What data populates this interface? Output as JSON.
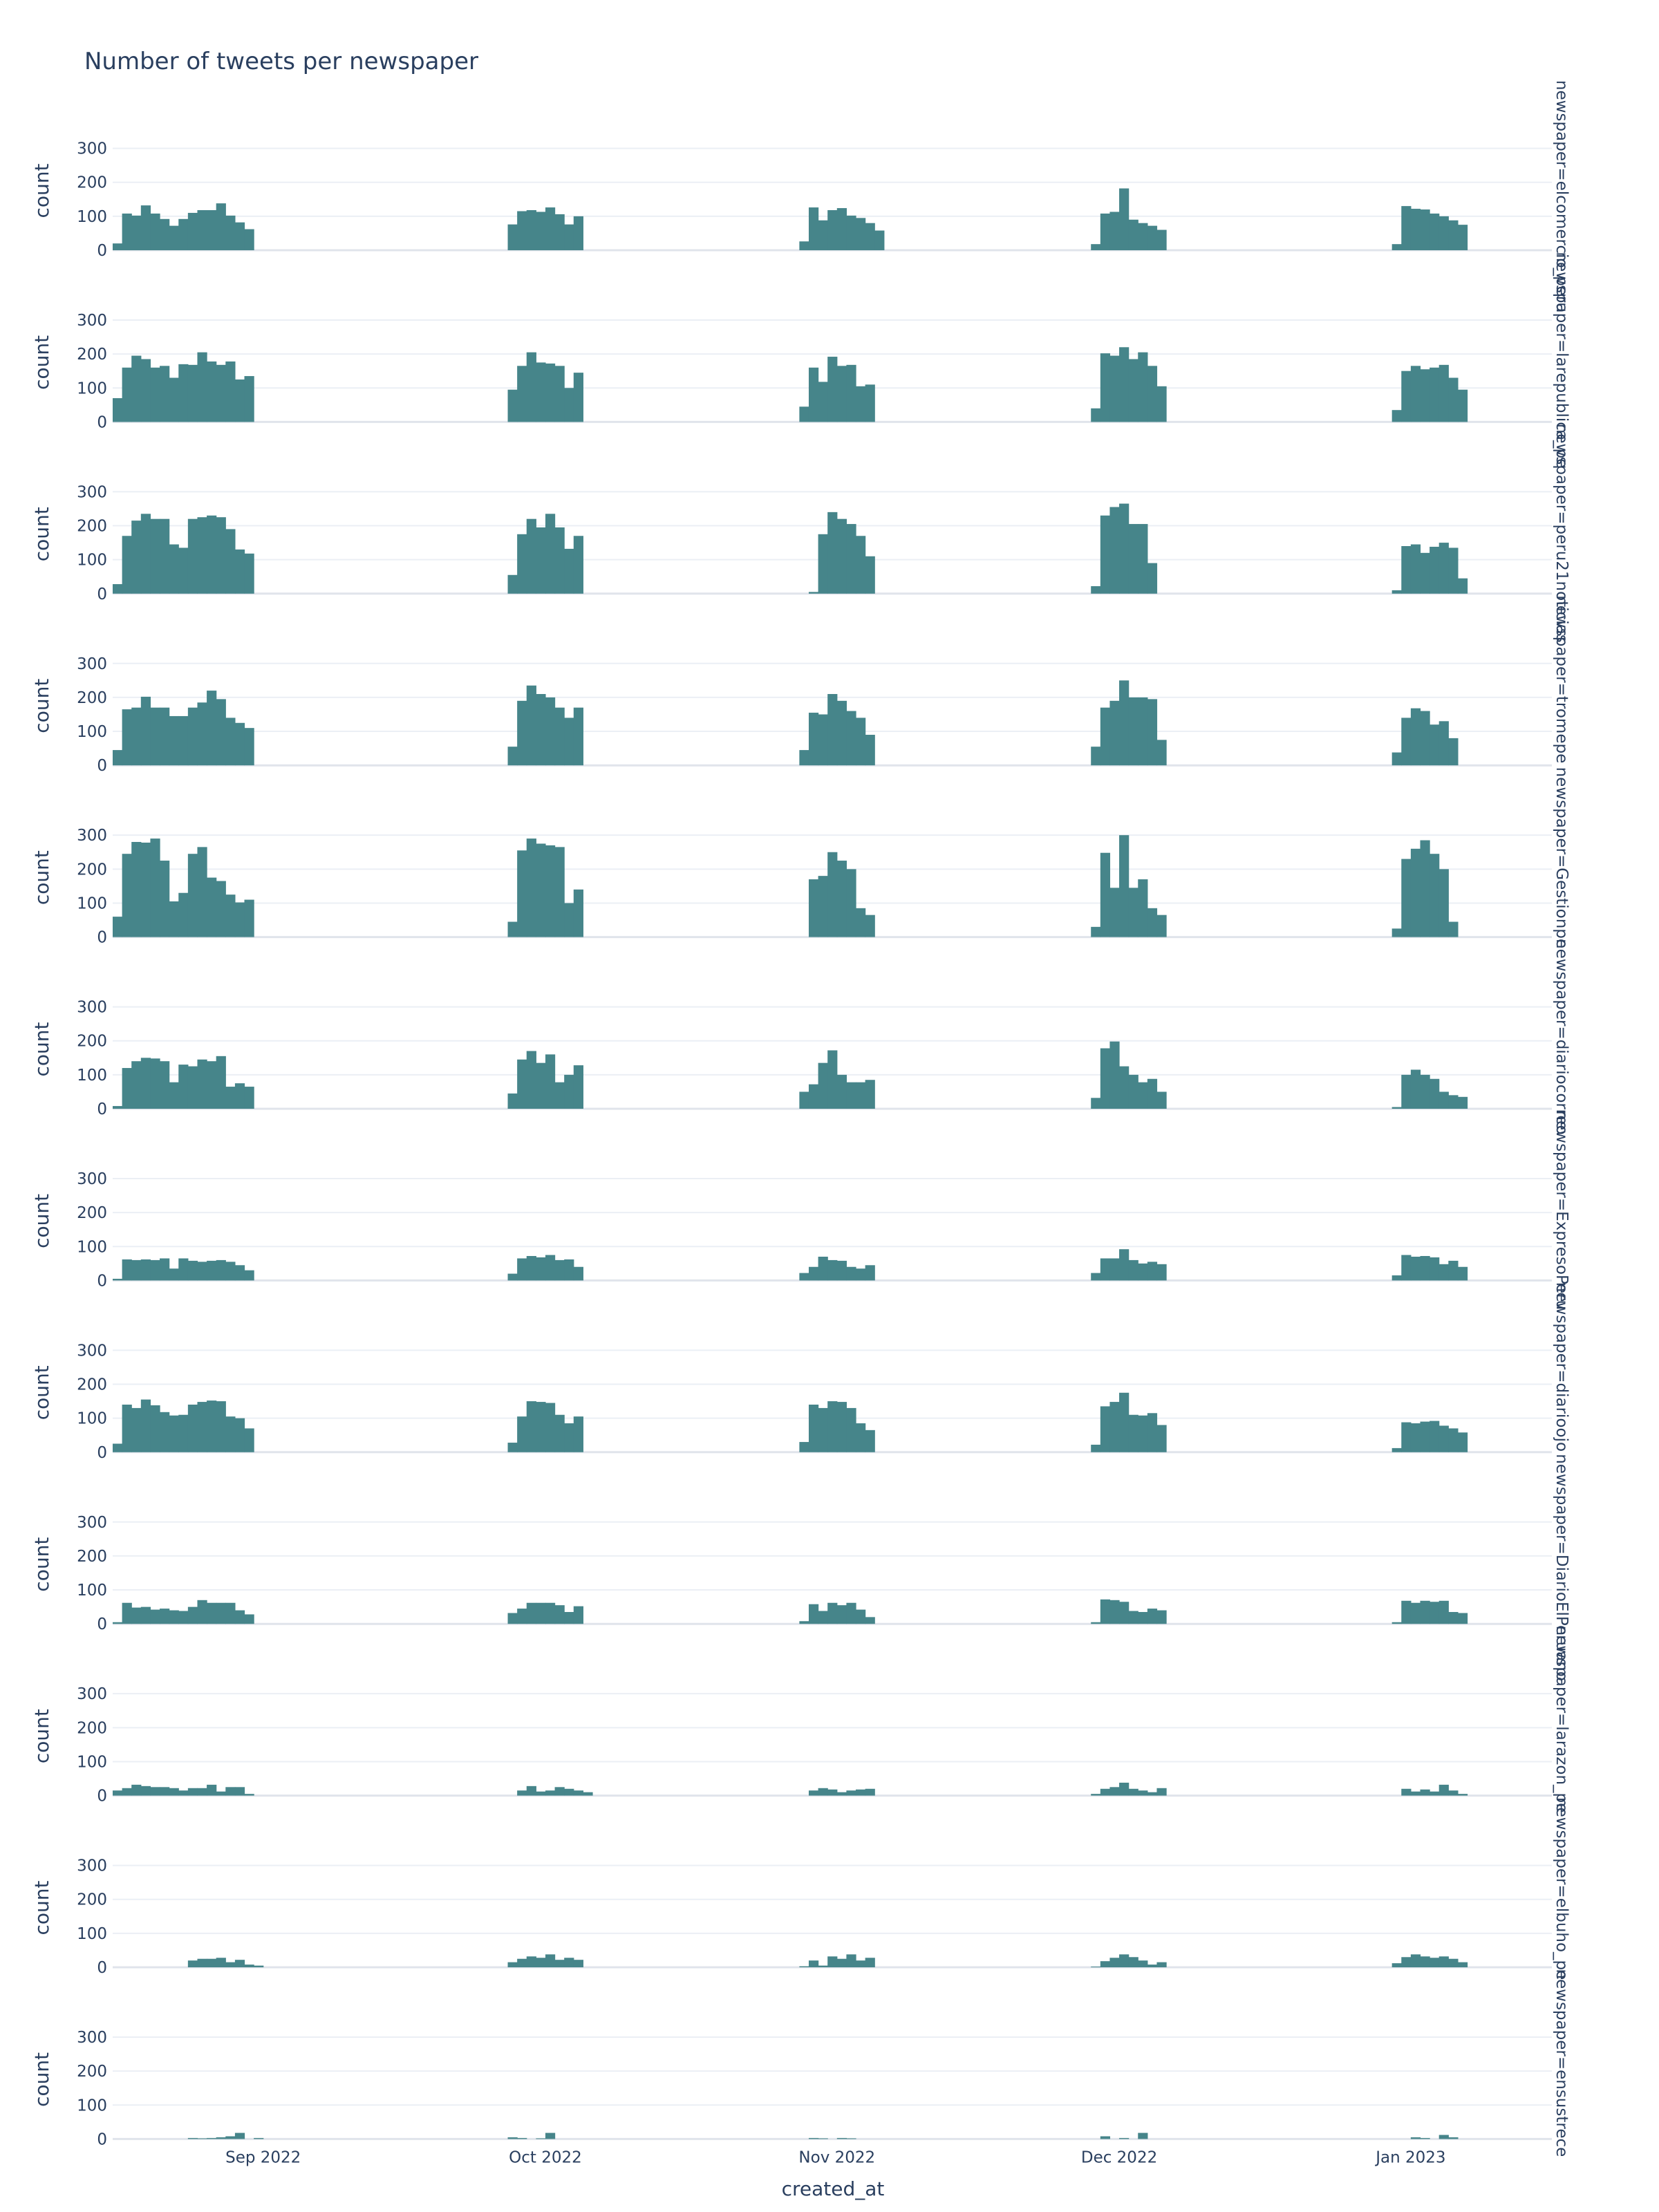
{
  "chart_data": {
    "type": "bar",
    "title": "Number of tweets per newspaper",
    "xlabel": "created_at",
    "ylabel": "count",
    "ylim": [
      0,
      350
    ],
    "yticks": [
      0,
      100,
      200,
      300
    ],
    "xticks": [
      {
        "label": "Sep 2022",
        "date": "2022-09-01"
      },
      {
        "label": "Oct 2022",
        "date": "2022-10-01"
      },
      {
        "label": "Nov 2022",
        "date": "2022-11-01"
      },
      {
        "label": "Dec 2022",
        "date": "2022-12-01"
      },
      {
        "label": "Jan 2023",
        "date": "2023-01-01"
      }
    ],
    "xrange": [
      "2022-08-16",
      "2023-01-16"
    ],
    "bin_days": 1,
    "bar_color": "#46858a",
    "grid": true,
    "legend": "none",
    "series": [
      {
        "name": "newspaper=elcomercio_peru",
        "values": [
          {
            "start": "2022-08-16",
            "counts": [
              20,
              108,
              102,
              132,
              108,
              92,
              72,
              92,
              110,
              118,
              118,
              138,
              102,
              82,
              62
            ]
          },
          {
            "start": "2022-09-27",
            "counts": [
              76,
              115,
              118,
              113,
              126,
              106,
              76,
              100
            ]
          },
          {
            "start": "2022-10-28",
            "counts": [
              26,
              126,
              88,
              118,
              124,
              102,
              95,
              80,
              58
            ]
          },
          {
            "start": "2022-11-28",
            "counts": [
              18,
              108,
              113,
              182,
              90,
              80,
              72,
              60
            ]
          },
          {
            "start": "2022-12-30",
            "counts": [
              18,
              130,
              122,
              120,
              108,
              100,
              88,
              75
            ]
          }
        ]
      },
      {
        "name": "newspaper=larepublica_pe",
        "values": [
          {
            "start": "2022-08-16",
            "counts": [
              70,
              160,
              195,
              185,
              160,
              165,
              130,
              170,
              168,
              205,
              178,
              168,
              178,
              125,
              135
            ]
          },
          {
            "start": "2022-09-27",
            "counts": [
              95,
              165,
              205,
              175,
              172,
              165,
              100,
              145
            ]
          },
          {
            "start": "2022-10-28",
            "counts": [
              45,
              160,
              118,
              192,
              165,
              168,
              105,
              110
            ]
          },
          {
            "start": "2022-11-28",
            "counts": [
              40,
              202,
              195,
              220,
              185,
              205,
              165,
              105
            ]
          },
          {
            "start": "2022-12-30",
            "counts": [
              35,
              150,
              165,
              155,
              160,
              168,
              130,
              95
            ]
          }
        ]
      },
      {
        "name": "newspaper=peru21noticias",
        "values": [
          {
            "start": "2022-08-16",
            "counts": [
              28,
              170,
              215,
              235,
              220,
              220,
              145,
              135,
              220,
              225,
              230,
              225,
              190,
              130,
              118
            ]
          },
          {
            "start": "2022-09-27",
            "counts": [
              55,
              175,
              220,
              195,
              235,
              195,
              132,
              170
            ]
          },
          {
            "start": "2022-10-29",
            "counts": [
              5,
              175,
              240,
              220,
              205,
              170,
              110
            ]
          },
          {
            "start": "2022-11-28",
            "counts": [
              22,
              230,
              255,
              265,
              205,
              205,
              90
            ]
          },
          {
            "start": "2022-12-30",
            "counts": [
              10,
              140,
              145,
              120,
              138,
              150,
              135,
              45
            ]
          }
        ]
      },
      {
        "name": "newspaper=tromepe",
        "values": [
          {
            "start": "2022-08-16",
            "counts": [
              45,
              165,
              170,
              202,
              170,
              170,
              145,
              145,
              170,
              185,
              220,
              195,
              140,
              125,
              110
            ]
          },
          {
            "start": "2022-09-27",
            "counts": [
              55,
              190,
              235,
              210,
              200,
              170,
              140,
              170
            ]
          },
          {
            "start": "2022-10-28",
            "counts": [
              45,
              155,
              150,
              210,
              190,
              160,
              140,
              90
            ]
          },
          {
            "start": "2022-11-28",
            "counts": [
              55,
              170,
              190,
              250,
              200,
              200,
              195,
              75
            ]
          },
          {
            "start": "2022-12-30",
            "counts": [
              38,
              140,
              168,
              160,
              120,
              130,
              80
            ]
          }
        ]
      },
      {
        "name": "newspaper=Gestionpe",
        "values": [
          {
            "start": "2022-08-16",
            "counts": [
              60,
              245,
              280,
              278,
              290,
              225,
              105,
              130,
              245,
              265,
              175,
              165,
              125,
              102,
              110
            ]
          },
          {
            "start": "2022-09-27",
            "counts": [
              45,
              255,
              290,
              275,
              270,
              265,
              100,
              140
            ]
          },
          {
            "start": "2022-10-29",
            "counts": [
              170,
              180,
              250,
              225,
              200,
              85,
              65
            ]
          },
          {
            "start": "2022-11-28",
            "counts": [
              30,
              248,
              145,
              300,
              145,
              170,
              85,
              65
            ]
          },
          {
            "start": "2022-12-30",
            "counts": [
              25,
              230,
              260,
              285,
              245,
              200,
              45
            ]
          }
        ]
      },
      {
        "name": "newspaper=diariocorreo",
        "values": [
          {
            "start": "2022-08-16",
            "counts": [
              8,
              120,
              140,
              150,
              148,
              140,
              78,
              130,
              125,
              145,
              140,
              155,
              65,
              75,
              65
            ]
          },
          {
            "start": "2022-09-27",
            "counts": [
              45,
              145,
              170,
              135,
              160,
              78,
              100,
              128
            ]
          },
          {
            "start": "2022-10-28",
            "counts": [
              50,
              72,
              135,
              172,
              100,
              78,
              78,
              85
            ]
          },
          {
            "start": "2022-11-28",
            "counts": [
              32,
              178,
              198,
              125,
              100,
              78,
              88,
              50
            ]
          },
          {
            "start": "2022-12-30",
            "counts": [
              5,
              100,
              115,
              100,
              88,
              50,
              40,
              35
            ]
          }
        ]
      },
      {
        "name": "newspaper=ExpresoPeru",
        "values": [
          {
            "start": "2022-08-16",
            "counts": [
              5,
              62,
              60,
              62,
              60,
              65,
              35,
              65,
              58,
              55,
              58,
              60,
              55,
              45,
              30
            ]
          },
          {
            "start": "2022-09-27",
            "counts": [
              20,
              65,
              72,
              68,
              75,
              60,
              62,
              40
            ]
          },
          {
            "start": "2022-10-28",
            "counts": [
              22,
              40,
              70,
              60,
              58,
              40,
              35,
              45
            ]
          },
          {
            "start": "2022-11-28",
            "counts": [
              22,
              65,
              65,
              92,
              60,
              50,
              55,
              48
            ]
          },
          {
            "start": "2022-12-30",
            "counts": [
              15,
              75,
              70,
              72,
              68,
              48,
              58,
              40
            ]
          }
        ]
      },
      {
        "name": "newspaper=diarioojo",
        "values": [
          {
            "start": "2022-08-16",
            "counts": [
              25,
              140,
              130,
              155,
              138,
              118,
              108,
              110,
              140,
              148,
              152,
              150,
              105,
              100,
              70
            ]
          },
          {
            "start": "2022-09-27",
            "counts": [
              28,
              105,
              150,
              148,
              145,
              110,
              85,
              105
            ]
          },
          {
            "start": "2022-10-28",
            "counts": [
              30,
              140,
              130,
              150,
              148,
              130,
              85,
              65
            ]
          },
          {
            "start": "2022-11-28",
            "counts": [
              22,
              135,
              148,
              175,
              110,
              108,
              115,
              80
            ]
          },
          {
            "start": "2022-12-30",
            "counts": [
              12,
              88,
              85,
              90,
              92,
              78,
              70,
              58
            ]
          }
        ]
      },
      {
        "name": "newspaper=DiarioElPeruano",
        "values": [
          {
            "start": "2022-08-16",
            "counts": [
              5,
              62,
              48,
              50,
              42,
              45,
              40,
              38,
              50,
              70,
              62,
              62,
              62,
              40,
              28
            ]
          },
          {
            "start": "2022-09-27",
            "counts": [
              32,
              45,
              62,
              62,
              62,
              55,
              35,
              52
            ]
          },
          {
            "start": "2022-10-28",
            "counts": [
              8,
              58,
              38,
              62,
              55,
              62,
              42,
              20
            ]
          },
          {
            "start": "2022-11-28",
            "counts": [
              5,
              72,
              70,
              65,
              38,
              35,
              45,
              40
            ]
          },
          {
            "start": "2022-12-30",
            "counts": [
              5,
              68,
              62,
              68,
              65,
              68,
              35,
              32
            ]
          }
        ]
      },
      {
        "name": "newspaper=larazon_pe",
        "values": [
          {
            "start": "2022-08-16",
            "counts": [
              15,
              22,
              32,
              28,
              25,
              25,
              22,
              15,
              22,
              22,
              32,
              12,
              25,
              25,
              5
            ]
          },
          {
            "start": "2022-09-28",
            "counts": [
              15,
              28,
              12,
              15,
              25,
              20,
              15,
              10
            ]
          },
          {
            "start": "2022-10-29",
            "counts": [
              15,
              22,
              18,
              10,
              15,
              18,
              20
            ]
          },
          {
            "start": "2022-11-28",
            "counts": [
              5,
              20,
              25,
              38,
              20,
              15,
              10,
              22
            ]
          },
          {
            "start": "2022-12-30",
            "counts": [
              0,
              20,
              12,
              18,
              12,
              32,
              15,
              5
            ]
          }
        ]
      },
      {
        "name": "newspaper=elbuho_pe",
        "values": [
          {
            "start": "2022-08-24",
            "counts": [
              20,
              25,
              25,
              28,
              15,
              22,
              8,
              5
            ]
          },
          {
            "start": "2022-09-27",
            "counts": [
              15,
              25,
              32,
              28,
              38,
              22,
              28,
              22
            ]
          },
          {
            "start": "2022-10-28",
            "counts": [
              3,
              20,
              5,
              32,
              25,
              38,
              20,
              28
            ]
          },
          {
            "start": "2022-11-28",
            "counts": [
              2,
              18,
              28,
              38,
              30,
              20,
              8,
              15
            ]
          },
          {
            "start": "2022-12-30",
            "counts": [
              12,
              30,
              38,
              32,
              28,
              32,
              25,
              15
            ]
          }
        ]
      },
      {
        "name": "newspaper=ensustrece",
        "values": [
          {
            "start": "2022-08-24",
            "counts": [
              3,
              2,
              3,
              5,
              8,
              18,
              0,
              3
            ]
          },
          {
            "start": "2022-09-27",
            "counts": [
              5,
              3,
              0,
              2,
              18
            ]
          },
          {
            "start": "2022-10-28",
            "counts": [
              0,
              3,
              2,
              0,
              3,
              2
            ]
          },
          {
            "start": "2022-11-28",
            "counts": [
              0,
              8,
              0,
              3,
              0,
              18
            ]
          },
          {
            "start": "2022-12-30",
            "counts": [
              0,
              0,
              5,
              3,
              0,
              12,
              5
            ]
          }
        ]
      }
    ]
  }
}
